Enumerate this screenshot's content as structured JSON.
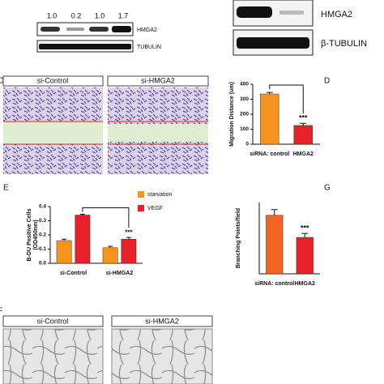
{
  "blot_left": {
    "ratios": [
      "1.0",
      "0.2",
      "1.0",
      "1.7"
    ],
    "labels": [
      "HMGA2",
      "TUBULIN"
    ]
  },
  "blot_right": {
    "labels": [
      "HMGA2",
      "β-TUBULIN"
    ]
  },
  "panel_c": {
    "label": "C",
    "headers": [
      "si-Control",
      "si-HMGA2"
    ]
  },
  "panel_f": {
    "label": "F",
    "headers": [
      "si-Control",
      "si-HMGA2"
    ]
  },
  "chart_data": [
    {
      "type": "bar",
      "label": "D",
      "y_label": "Migration Distance (um)",
      "categories": [
        "siRNA: control",
        "HMGA2"
      ],
      "values": [
        335,
        125
      ],
      "errors": [
        10,
        14
      ],
      "colors": [
        "#f7941d",
        "#e8202a"
      ],
      "ylim": [
        0,
        400
      ],
      "yticks": [
        0,
        100,
        200,
        300,
        400
      ],
      "annotation": "***",
      "annotation_color": "#111111"
    },
    {
      "type": "grouped_bar",
      "label": "E",
      "y_label": "B-DU Positive Cells",
      "y_unit": "(OD450nm)",
      "categories": [
        "si-Control",
        "si-HMGA2"
      ],
      "series": [
        {
          "name": "starvation",
          "color": "#f7941d",
          "values": [
            0.16,
            0.11
          ],
          "errors": [
            0.01,
            0.01
          ]
        },
        {
          "name": "VEGF",
          "color": "#e8202a",
          "values": [
            0.34,
            0.17
          ],
          "errors": [
            0.006,
            0.012
          ]
        }
      ],
      "ylim": [
        0,
        0.4
      ],
      "yticks": [
        {
          "value": 0,
          "label": "0.0"
        },
        {
          "value": 0.1,
          "label": "0.1"
        },
        {
          "value": 0.2,
          "label": "0.2"
        },
        {
          "value": 0.3,
          "label": "0.3"
        },
        {
          "value": 0.4,
          "label": "0.4"
        }
      ],
      "annotation": "***",
      "annotation_color": "#111111"
    },
    {
      "type": "bar",
      "label": "G",
      "y_label": "Branching Points/field",
      "categories": [
        "siRNA: control",
        "HMGA2"
      ],
      "values": [
        37,
        23
      ],
      "errors": [
        3.5,
        2.5
      ],
      "colors": [
        "#f26522",
        "#e8202a"
      ],
      "ylim": [
        0,
        45
      ],
      "annotation": "***",
      "annotation_color": "#e8202a"
    }
  ]
}
